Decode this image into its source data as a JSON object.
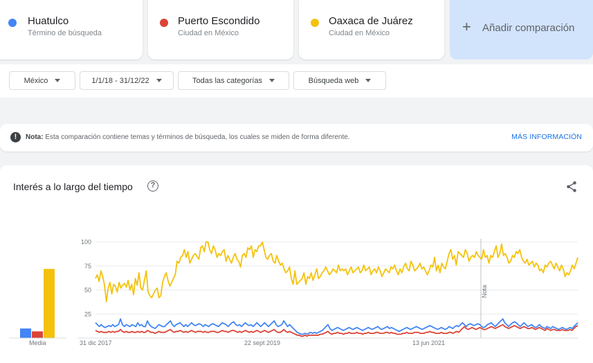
{
  "terms": [
    {
      "name": "Huatulco",
      "sub": "Término de búsqueda",
      "color": "#4285f4"
    },
    {
      "name": "Puerto Escondido",
      "sub": "Ciudad en México",
      "color": "#db4437"
    },
    {
      "name": "Oaxaca de Juárez",
      "sub": "Ciudad en México",
      "color": "#f4c20d"
    }
  ],
  "add_comparison": {
    "plus": "+",
    "label": "Añadir comparación"
  },
  "filters": {
    "region": "México",
    "date_range": "1/1/18 - 31/12/22",
    "category": "Todas las categorías",
    "search_type": "Búsqueda web"
  },
  "note": {
    "icon": "!",
    "bold": "Nota:",
    "text": " Esta comparación contiene temas y términos de búsqueda, los cuales se miden de forma diferente.",
    "link": "MÁS INFORMACIÓN"
  },
  "chart_section": {
    "title": "Interés a lo largo del tiempo",
    "help_icon": "?",
    "share_icon": "share-icon"
  },
  "chart_data": [
    {
      "type": "bar",
      "categories": [
        "Media"
      ],
      "series": [
        {
          "name": "Huatulco",
          "values": [
            10
          ],
          "color": "#4285f4"
        },
        {
          "name": "Puerto Escondido",
          "values": [
            7
          ],
          "color": "#db4437"
        },
        {
          "name": "Oaxaca de Juárez",
          "values": [
            72
          ],
          "color": "#f4c20d"
        }
      ],
      "ylim": [
        0,
        100
      ]
    },
    {
      "type": "line",
      "x_labels": [
        "31 dic 2017",
        "22 sept 2019",
        "13 jun 2021"
      ],
      "y_ticks": [
        100,
        75,
        50,
        25
      ],
      "ylim": [
        0,
        100
      ],
      "annotation": "Nota",
      "series": [
        {
          "name": "Oaxaca de Juárez",
          "color": "#f4c20d",
          "values": [
            62,
            66,
            59,
            70,
            64,
            55,
            38,
            52,
            58,
            46,
            56,
            54,
            48,
            58,
            52,
            55,
            57,
            53,
            60,
            50,
            56,
            45,
            62,
            55,
            68,
            52,
            50,
            60,
            70,
            48,
            44,
            42,
            46,
            50,
            52,
            42,
            44,
            58,
            64,
            68,
            60,
            54,
            58,
            62,
            66,
            80,
            78,
            84,
            86,
            92,
            84,
            90,
            78,
            82,
            86,
            88,
            85,
            82,
            94,
            96,
            90,
            100,
            100,
            92,
            88,
            96,
            92,
            84,
            88,
            86,
            90,
            92,
            80,
            86,
            82,
            78,
            84,
            88,
            82,
            80,
            74,
            86,
            88,
            84,
            94,
            92,
            96,
            84,
            92,
            90,
            96,
            96,
            100,
            92,
            84,
            82,
            86,
            88,
            80,
            78,
            86,
            80,
            76,
            78,
            72,
            68,
            70,
            74,
            62,
            56,
            70,
            56,
            58,
            60,
            62,
            68,
            56,
            64,
            62,
            68,
            60,
            66,
            72,
            62,
            64,
            68,
            70,
            74,
            70,
            66,
            68,
            72,
            70,
            68,
            76,
            70,
            72,
            70,
            72,
            66,
            70,
            74,
            68,
            70,
            72,
            74,
            68,
            70,
            76,
            70,
            72,
            74,
            66,
            70,
            72,
            68,
            74,
            70,
            64,
            68,
            72,
            70,
            68,
            74,
            72,
            76,
            70,
            66,
            72,
            68,
            74,
            78,
            72,
            70,
            80,
            76,
            70,
            72,
            74,
            78,
            72,
            74,
            70,
            66,
            70,
            76,
            74,
            84,
            70,
            76,
            68,
            78,
            74,
            72,
            80,
            88,
            92,
            82,
            86,
            76,
            90,
            88,
            86,
            84,
            92,
            88,
            80,
            84,
            86,
            84,
            90,
            86,
            84,
            82,
            92,
            84,
            86,
            78,
            86,
            84,
            90,
            96,
            84,
            88,
            98,
            86,
            88,
            84,
            78,
            80,
            86,
            84,
            90,
            88,
            92,
            84,
            80,
            78,
            82,
            76,
            78,
            80,
            74,
            78,
            76,
            70,
            72,
            68,
            76,
            74,
            78,
            80,
            76,
            72,
            78,
            74,
            70,
            76,
            72,
            64,
            68,
            66,
            70,
            76,
            72,
            78,
            84
          ]
        },
        {
          "name": "Huatulco",
          "color": "#4285f4",
          "values": [
            16,
            14,
            12,
            14,
            12,
            11,
            12,
            13,
            12,
            14,
            12,
            13,
            14,
            20,
            14,
            12,
            14,
            13,
            12,
            14,
            13,
            12,
            16,
            13,
            14,
            12,
            12,
            18,
            14,
            12,
            11,
            10,
            12,
            14,
            13,
            12,
            12,
            14,
            16,
            18,
            14,
            12,
            14,
            15,
            16,
            14,
            12,
            14,
            12,
            14,
            16,
            14,
            13,
            14,
            15,
            14,
            12,
            14,
            13,
            12,
            14,
            15,
            14,
            13,
            12,
            14,
            16,
            15,
            14,
            12,
            14,
            16,
            17,
            14,
            13,
            14,
            12,
            14,
            16,
            14,
            13,
            14,
            12,
            14,
            16,
            14,
            12,
            14,
            16,
            14,
            12,
            14,
            16,
            18,
            14,
            12,
            13,
            14,
            18,
            15,
            12,
            14,
            12,
            10,
            8,
            6,
            5,
            4,
            4,
            5,
            4,
            5,
            6,
            5,
            6,
            5,
            6,
            7,
            8,
            10,
            12,
            14,
            10,
            8,
            9,
            10,
            11,
            10,
            9,
            8,
            9,
            10,
            11,
            10,
            9,
            10,
            11,
            10,
            9,
            8,
            9,
            10,
            11,
            10,
            9,
            10,
            11,
            12,
            10,
            9,
            10,
            11,
            12,
            10,
            11,
            10,
            9,
            8,
            7,
            8,
            9,
            10,
            11,
            10,
            9,
            10,
            11,
            12,
            11,
            10,
            9,
            10,
            11,
            12,
            13,
            12,
            11,
            10,
            9,
            10,
            11,
            10,
            9,
            10,
            12,
            11,
            10,
            12,
            13,
            12,
            14,
            16,
            14,
            12,
            14,
            15,
            14,
            13,
            14,
            15,
            14,
            12,
            11,
            12,
            14,
            15,
            16,
            14,
            12,
            14,
            16,
            18,
            20,
            16,
            14,
            12,
            14,
            16,
            17,
            16,
            14,
            12,
            14,
            16,
            14,
            12,
            13,
            14,
            12,
            11,
            12,
            14,
            12,
            11,
            10,
            12,
            11,
            10,
            12,
            11,
            10,
            9,
            10,
            11,
            10,
            9,
            10,
            11,
            10,
            12,
            14,
            16
          ]
        },
        {
          "name": "Puerto Escondido",
          "color": "#db4437",
          "values": [
            8,
            7,
            6,
            7,
            6,
            6,
            6,
            7,
            6,
            7,
            6,
            7,
            7,
            9,
            7,
            6,
            7,
            6,
            6,
            7,
            6,
            6,
            7,
            6,
            7,
            6,
            6,
            8,
            7,
            6,
            6,
            5,
            6,
            7,
            6,
            6,
            6,
            7,
            8,
            9,
            7,
            6,
            7,
            7,
            8,
            7,
            6,
            7,
            6,
            7,
            8,
            7,
            6,
            7,
            7,
            7,
            6,
            7,
            6,
            6,
            7,
            7,
            7,
            6,
            6,
            7,
            8,
            7,
            7,
            6,
            7,
            8,
            8,
            7,
            6,
            7,
            6,
            7,
            8,
            7,
            6,
            7,
            6,
            7,
            8,
            7,
            6,
            7,
            8,
            7,
            6,
            7,
            8,
            9,
            7,
            6,
            6,
            7,
            9,
            7,
            6,
            7,
            6,
            5,
            4,
            3,
            3,
            2,
            2,
            3,
            2,
            3,
            3,
            3,
            3,
            3,
            3,
            4,
            4,
            5,
            6,
            7,
            5,
            4,
            5,
            5,
            6,
            5,
            5,
            4,
            5,
            5,
            6,
            5,
            5,
            5,
            6,
            5,
            5,
            4,
            5,
            5,
            6,
            5,
            5,
            5,
            6,
            6,
            5,
            5,
            5,
            6,
            6,
            5,
            6,
            5,
            5,
            4,
            4,
            4,
            5,
            5,
            6,
            5,
            5,
            5,
            6,
            6,
            6,
            5,
            5,
            5,
            6,
            6,
            7,
            6,
            6,
            5,
            5,
            5,
            6,
            5,
            5,
            5,
            6,
            6,
            5,
            6,
            7,
            6,
            8,
            10,
            12,
            10,
            9,
            10,
            11,
            10,
            9,
            10,
            11,
            10,
            9,
            9,
            10,
            11,
            12,
            11,
            10,
            11,
            12,
            13,
            14,
            12,
            11,
            10,
            11,
            12,
            13,
            12,
            11,
            10,
            11,
            12,
            11,
            10,
            10,
            11,
            10,
            9,
            10,
            11,
            10,
            9,
            8,
            10,
            9,
            8,
            9,
            9,
            8,
            8,
            8,
            9,
            8,
            8,
            8,
            9,
            8,
            10,
            12,
            13
          ]
        }
      ]
    }
  ]
}
